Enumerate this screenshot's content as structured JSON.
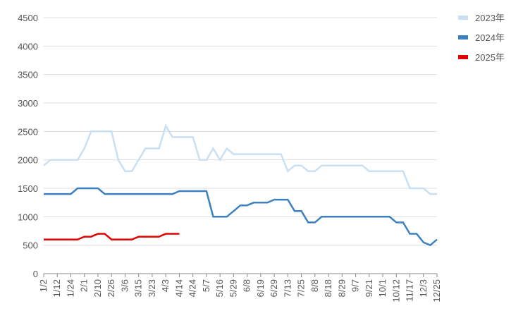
{
  "chart_data": {
    "type": "line",
    "categories": [
      "1/2",
      null,
      "1/12",
      null,
      "1/24",
      null,
      "2/1",
      null,
      "2/10",
      null,
      "2/26",
      null,
      "3/6",
      null,
      "3/15",
      null,
      "3/23",
      null,
      "4/3",
      null,
      "4/14",
      null,
      "4/24",
      null,
      "5/7",
      null,
      "5/16",
      null,
      "5/29",
      null,
      "6/8",
      null,
      "6/19",
      null,
      "6/29",
      null,
      "7/13",
      null,
      "7/25",
      null,
      "8/8",
      null,
      "8/18",
      null,
      "8/29",
      null,
      "9/7",
      null,
      "9/21",
      null,
      "10/1",
      null,
      "10/12",
      null,
      "11/17",
      null,
      "12/3",
      null,
      "12/25"
    ],
    "series": [
      {
        "name": "2023年",
        "color": "#c9dff2",
        "values": [
          1900,
          2000,
          2000,
          2000,
          2000,
          2000,
          2200,
          2500,
          2500,
          2500,
          2500,
          2000,
          1800,
          1800,
          2000,
          2200,
          2200,
          2200,
          2600,
          2400,
          2400,
          2400,
          2400,
          2000,
          2000,
          2200,
          2000,
          2200,
          2100,
          2100,
          2100,
          2100,
          2100,
          2100,
          2100,
          2100,
          1800,
          1900,
          1900,
          1800,
          1800,
          1900,
          1900,
          1900,
          1900,
          1900,
          1900,
          1900,
          1800,
          1800,
          1800,
          1800,
          1800,
          1800,
          1500,
          1500,
          1500,
          1400,
          1400
        ]
      },
      {
        "name": "2024年",
        "color": "#3d80c0",
        "values": [
          1400,
          1400,
          1400,
          1400,
          1400,
          1500,
          1500,
          1500,
          1500,
          1400,
          1400,
          1400,
          1400,
          1400,
          1400,
          1400,
          1400,
          1400,
          1400,
          1400,
          1450,
          1450,
          1450,
          1450,
          1450,
          1000,
          1000,
          1000,
          1100,
          1200,
          1200,
          1250,
          1250,
          1250,
          1300,
          1300,
          1300,
          1100,
          1100,
          900,
          900,
          1000,
          1000,
          1000,
          1000,
          1000,
          1000,
          1000,
          1000,
          1000,
          1000,
          1000,
          900,
          900,
          700,
          700,
          550,
          500,
          600
        ]
      },
      {
        "name": "2025年",
        "color": "#e00000",
        "values": [
          600,
          600,
          600,
          600,
          600,
          600,
          650,
          650,
          700,
          700,
          600,
          600,
          600,
          600,
          650,
          650,
          650,
          650,
          700,
          700,
          700,
          null,
          null,
          null,
          null,
          null,
          null,
          null,
          null,
          null,
          null,
          null,
          null,
          null,
          null,
          null,
          null,
          null,
          null,
          null,
          null,
          null,
          null,
          null,
          null,
          null,
          null,
          null,
          null,
          null,
          null,
          null,
          null,
          null,
          null,
          null,
          null,
          null,
          null
        ]
      }
    ],
    "ylim": [
      0,
      4500
    ],
    "yticks": [
      0,
      500,
      1000,
      1500,
      2000,
      2500,
      3000,
      3500,
      4000,
      4500
    ],
    "grid": true,
    "legend": "right"
  }
}
